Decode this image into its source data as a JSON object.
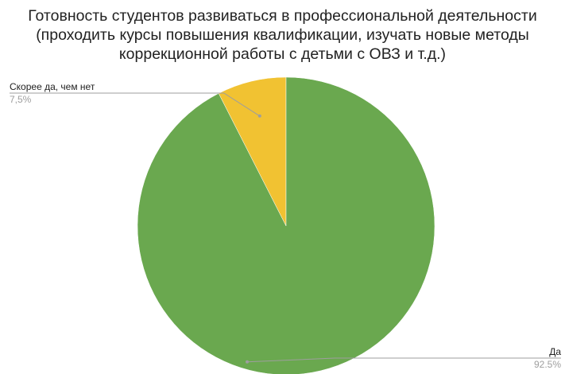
{
  "chart_data": {
    "type": "pie",
    "title_lines": [
      "Готовность студентов развиваться в профессиональной деятельности",
      "(проходить курсы повышения квалификации, изучать новые методы",
      "коррекционной работы с детьми с ОВЗ и т.д.)"
    ],
    "slices": [
      {
        "label": "Скорее да, чем нет",
        "value": 7.5,
        "value_label": "7,5%",
        "color": "#f1c232"
      },
      {
        "label": "Да",
        "value": 92.5,
        "value_label": "92.5%",
        "color": "#6aa84f"
      }
    ],
    "start_angle_deg": 0,
    "direction": "counterclockwise",
    "leader_color": "#9e9e9e",
    "label_placement": [
      "top-left",
      "bottom-right"
    ]
  }
}
